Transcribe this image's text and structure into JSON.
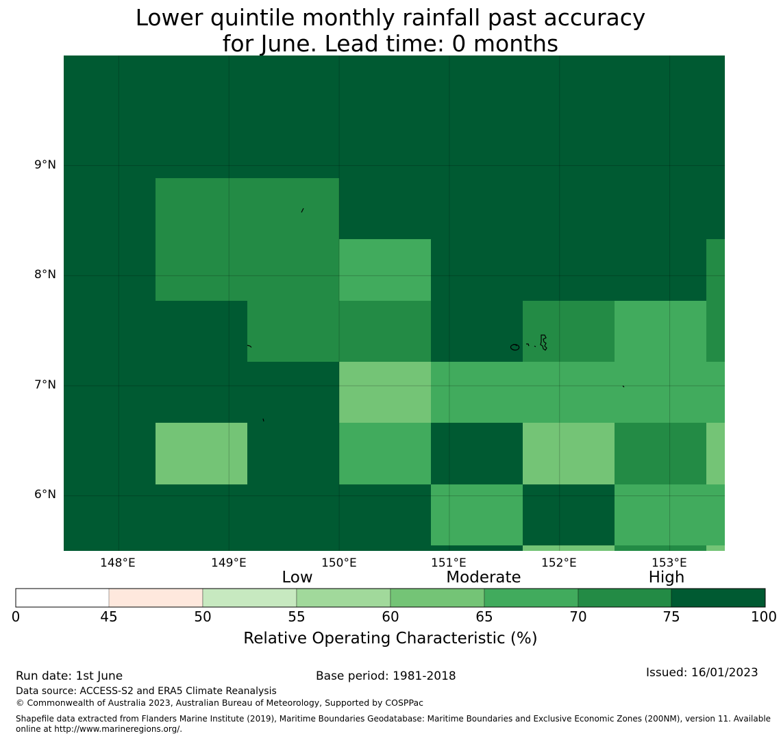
{
  "title": {
    "line1": "Lower quintile monthly rainfall past accuracy",
    "line2": "for June. Lead time: 0 months"
  },
  "map": {
    "lon_labels": [
      "148°E",
      "149°E",
      "150°E",
      "151°E",
      "152°E",
      "153°E"
    ],
    "lat_labels": [
      "9°N",
      "8°N",
      "7°N",
      "6°N"
    ],
    "extent": {
      "lon_min": 147.5,
      "lon_max": 153.5,
      "lat_min": 5.5,
      "lat_max": 10.0
    },
    "grid_lines": true,
    "grid_cells_roc": [
      [
        0,
        0,
        0,
        0,
        0,
        0,
        0,
        0
      ],
      [
        0,
        72,
        72,
        0,
        0,
        0,
        0,
        0
      ],
      [
        0,
        72,
        72,
        67,
        0,
        0,
        0,
        72
      ],
      [
        0,
        0,
        72,
        72,
        0,
        72,
        67,
        72
      ],
      [
        0,
        0,
        0,
        62,
        67,
        67,
        67,
        67
      ],
      [
        0,
        62,
        0,
        67,
        0,
        62,
        72,
        62
      ],
      [
        0,
        0,
        0,
        0,
        67,
        0,
        67,
        67
      ]
    ]
  },
  "colorbar": {
    "category_labels": [
      "Low",
      "Moderate",
      "High"
    ],
    "ticks": [
      "0",
      "45",
      "50",
      "55",
      "60",
      "65",
      "70",
      "75",
      "100"
    ],
    "colors": [
      "#ffffff",
      "#fee8dd",
      "#c7e9c0",
      "#a1d99b",
      "#74c476",
      "#41ab5d",
      "#238b45",
      "#005a32"
    ],
    "label": "Relative Operating Characteristic (%)"
  },
  "colors": {
    "high": "#005a32",
    "high_moderate": "#238b45",
    "moderate": "#41ab5d",
    "moderate_low": "#74c476"
  },
  "footer": {
    "run_date": "Run date: 1st June",
    "base_period": "Base period: 1981-2018",
    "issued": "Issued: 16/01/2023",
    "data_source": "Data source: ACCESS-S2 and ERA5 Climate Reanalysis",
    "copyright": "© Commonwealth of Australia 2023, Australian Bureau of Meteorology, Supported by COSPPac",
    "shapefile_line1": "Shapefile data extracted from Flanders Marine Institute (2019), Maritime Boundaries Geodatabase: Maritime Boundaries and Exclusive Economic Zones (200NM), version 11. Available",
    "shapefile_line2": "online at http://www.marineregions.org/."
  }
}
